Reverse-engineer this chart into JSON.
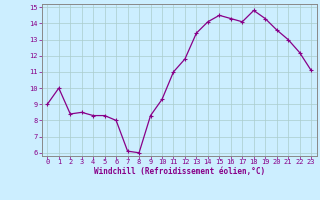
{
  "x": [
    0,
    1,
    2,
    3,
    4,
    5,
    6,
    7,
    8,
    9,
    10,
    11,
    12,
    13,
    14,
    15,
    16,
    17,
    18,
    19,
    20,
    21,
    22,
    23
  ],
  "y": [
    9.0,
    10.0,
    8.4,
    8.5,
    8.3,
    8.3,
    8.0,
    6.1,
    6.0,
    8.3,
    9.3,
    11.0,
    11.8,
    13.4,
    14.1,
    14.5,
    14.3,
    14.1,
    14.8,
    14.3,
    13.6,
    13.0,
    12.2,
    11.1
  ],
  "line_color": "#880088",
  "marker": "+",
  "marker_color": "#880088",
  "marker_size": 3.5,
  "marker_lw": 0.8,
  "bg_color": "#cceeff",
  "grid_color": "#aacccc",
  "xlabel": "Windchill (Refroidissement éolien,°C)",
  "xlabel_color": "#880088",
  "tick_color": "#880088",
  "label_fontsize": 5.0,
  "xlabel_fontsize": 5.5,
  "ylim": [
    6,
    15
  ],
  "xlim": [
    -0.5,
    23.5
  ],
  "yticks": [
    6,
    7,
    8,
    9,
    10,
    11,
    12,
    13,
    14,
    15
  ],
  "xticks": [
    0,
    1,
    2,
    3,
    4,
    5,
    6,
    7,
    8,
    9,
    10,
    11,
    12,
    13,
    14,
    15,
    16,
    17,
    18,
    19,
    20,
    21,
    22,
    23
  ],
  "spine_color": "#888888",
  "line_width": 0.9
}
